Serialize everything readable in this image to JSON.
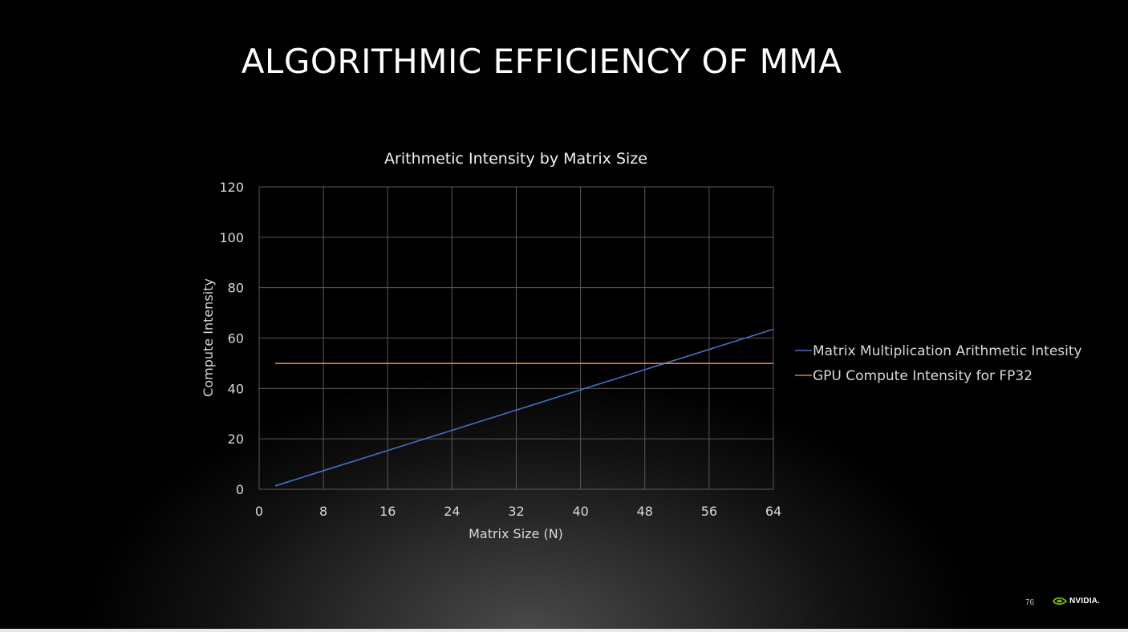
{
  "slide": {
    "title": "ALGORITHMIC EFFICIENCY OF MMA",
    "page_number": "76",
    "logo_text": "NVIDIA.",
    "logo_icon": "nvidia-eye-icon"
  },
  "chart_data": {
    "type": "line",
    "title": "Arithmetic Intensity by Matrix Size",
    "xlabel": "Matrix Size (N)",
    "ylabel": "Compute Intensity",
    "xlim": [
      0,
      64
    ],
    "ylim": [
      0,
      120
    ],
    "xticks": [
      "0",
      "8",
      "16",
      "24",
      "32",
      "40",
      "48",
      "56",
      "64"
    ],
    "yticks": [
      "0",
      "20",
      "40",
      "60",
      "80",
      "100",
      "120"
    ],
    "grid": true,
    "legend_position": "right",
    "series": [
      {
        "name": "Matrix Multiplication Arithmetic Intesity",
        "color": "#4472C4",
        "x": [
          2,
          64
        ],
        "y": [
          1.33,
          63.5
        ]
      },
      {
        "name": "GPU Compute Intensity for FP32",
        "color": "#ED7D31",
        "x": [
          2,
          64
        ],
        "y": [
          49.9,
          49.9
        ]
      }
    ]
  }
}
